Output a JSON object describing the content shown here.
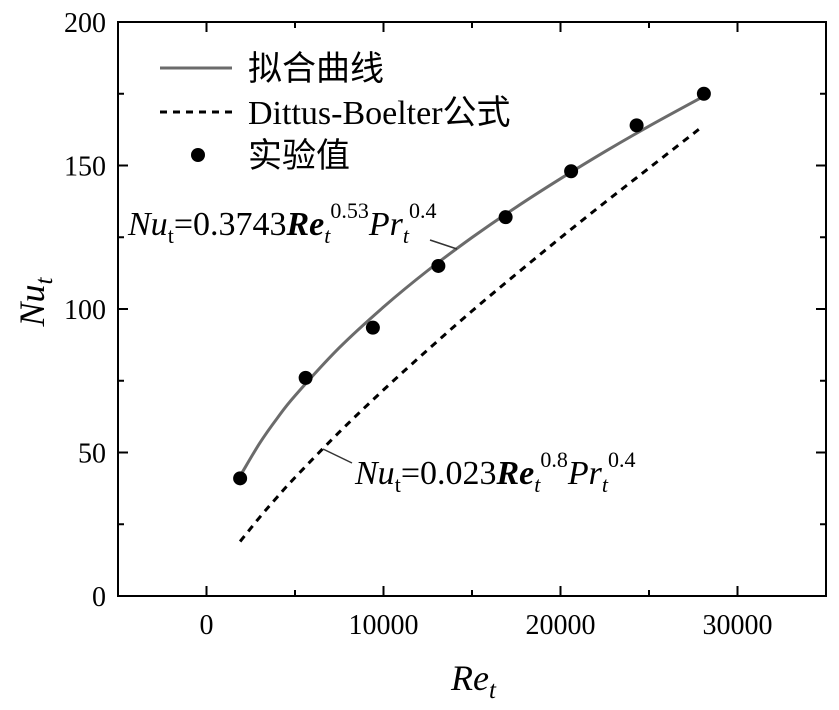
{
  "chart_data": {
    "type": "line",
    "xlabel": {
      "text": "Re",
      "sub": "t"
    },
    "ylabel": {
      "text": "Nu",
      "sub": "t"
    },
    "xlim": [
      -5000,
      35000
    ],
    "ylim": [
      0,
      200
    ],
    "xticks": [
      0,
      10000,
      20000,
      30000
    ],
    "xtick_labels": [
      "0",
      "10000",
      "20000",
      "30000"
    ],
    "x_minor_ticks": [
      5000,
      15000,
      25000
    ],
    "yticks": [
      0,
      50,
      100,
      150,
      200
    ],
    "ytick_labels": [
      "0",
      "50",
      "100",
      "150",
      "200"
    ],
    "y_minor_ticks": [
      25,
      75,
      125,
      175
    ],
    "grid": false,
    "legend_position": "top-left",
    "series": [
      {
        "name": "拟合曲线",
        "type": "line",
        "dashed": false,
        "color": "#6b6b6b",
        "x": [
          1900,
          3000,
          4000,
          5000,
          7500,
          10000,
          12500,
          15000,
          17500,
          20000,
          22500,
          25000,
          28000
        ],
        "y": [
          41.8,
          53.2,
          62.0,
          69.8,
          86.5,
          100.7,
          113.4,
          124.9,
          135.5,
          145.4,
          154.8,
          163.7,
          173.8
        ]
      },
      {
        "name": "Dittus-Boelter公式",
        "type": "line",
        "dashed": true,
        "color": "#000000",
        "x": [
          1900,
          3000,
          4000,
          5000,
          7500,
          10000,
          12500,
          15000,
          17500,
          20000,
          22500,
          25000,
          28000
        ],
        "y": [
          19.0,
          27.4,
          34.5,
          41.3,
          57.1,
          71.8,
          85.8,
          99.3,
          112.2,
          124.8,
          137.1,
          149.1,
          163.5
        ]
      },
      {
        "name": "实验值",
        "type": "scatter",
        "color": "#000000",
        "x": [
          1900,
          5600,
          9400,
          13100,
          16900,
          20600,
          24300,
          28100
        ],
        "y": [
          41,
          76,
          93.5,
          115,
          132,
          148,
          164,
          175
        ]
      }
    ],
    "annotations": [
      {
        "parts": [
          "Nu",
          "t",
          "=0.3743",
          "Re",
          "t",
          "0.53",
          "Pr",
          "t",
          "0.4"
        ]
      },
      {
        "parts": [
          "Nu",
          "t",
          "=0.023",
          "Re",
          "t",
          "0.8",
          "Pr",
          "t",
          "0.4"
        ]
      }
    ]
  }
}
